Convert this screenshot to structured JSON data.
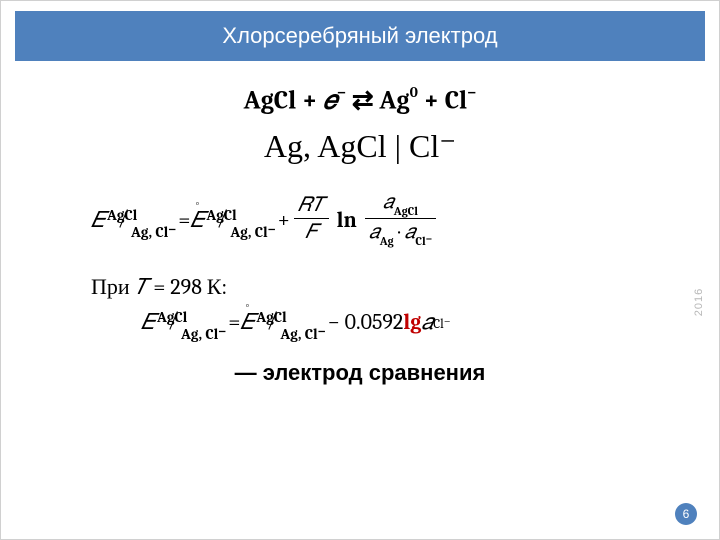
{
  "title": "Хлорсеребряный электрод",
  "reaction": {
    "lhs1": "AgCl",
    "plus1": " + ",
    "e": "𝑒",
    "e_sup": "−",
    "arrows": " ⇄ ",
    "rhs1": "Ag",
    "rhs1_sup": "0",
    "plus2": " + ",
    "rhs2": "Cl",
    "rhs2_sup": "−"
  },
  "cell_notation": "Ag, AgCl | Cl⁻",
  "eq1": {
    "E": "𝐸",
    "sub_top": "AgCl",
    "sub_bot": "Ag, Cl⁻",
    "equals": "  =  ",
    "E2": "𝐸",
    "rt": "𝑅𝑇",
    "F": "𝐹",
    "plus": "  +  ",
    "ln": "ln",
    "a_top": "𝑎",
    "a_top_sub": "AgCl",
    "a_bot1": "𝑎",
    "a_bot1_sub": "Ag",
    "dot": " · ",
    "a_bot2": "𝑎",
    "a_bot2_sub": "Cl⁻"
  },
  "condition": {
    "pre": "При ",
    "T": "𝑇",
    "rest": " = 298 К:"
  },
  "eq2": {
    "coef": " − 0.0592 ",
    "lg": "lg",
    "a": " 𝑎",
    "a_sub": "Cl⁻"
  },
  "footer": "— электрод сравнения",
  "page_number": "6",
  "year": "2016",
  "colors": {
    "header_bg": "#4f81bd",
    "red": "#c00000"
  }
}
